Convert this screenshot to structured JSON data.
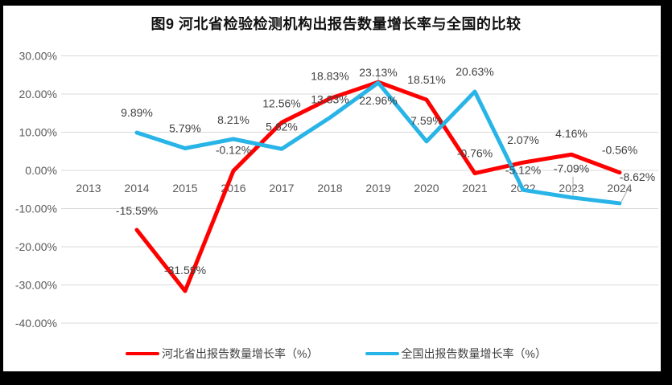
{
  "chart_data": {
    "type": "line",
    "title": "图9 河北省检验检测机构出报告数量增长率与全国的比较",
    "categories": [
      "2013",
      "2014",
      "2015",
      "2016",
      "2017",
      "2018",
      "2019",
      "2020",
      "2021",
      "2022",
      "2023",
      "2024"
    ],
    "series": [
      {
        "name": "河北省出报告数量增长率（%）",
        "color": "#FF0000",
        "values": [
          null,
          -15.59,
          -31.59,
          -0.12,
          12.56,
          18.83,
          23.13,
          18.51,
          -0.76,
          2.07,
          4.16,
          -0.56
        ],
        "labels": [
          "",
          "-15.59%",
          "-31.59%",
          "-0.12%",
          "12.56%",
          "18.83%",
          "23.13%",
          "18.51%",
          "-0.76%",
          "2.07%",
          "4.16%",
          "-0.56%"
        ]
      },
      {
        "name": "全国出报告数量增长率（%）",
        "color": "#29B4E8",
        "values": [
          null,
          9.89,
          5.79,
          8.21,
          5.62,
          13.83,
          22.96,
          7.59,
          20.63,
          -5.12,
          -7.09,
          -8.62
        ],
        "labels": [
          "",
          "9.89%",
          "5.79%",
          "8.21%",
          "5.62%",
          "13.83%",
          "22.96%",
          "7.59%",
          "20.63%",
          "-5.12%",
          "-7.09%",
          "-8.62%"
        ]
      }
    ],
    "y_axis": {
      "min": -40,
      "max": 30,
      "step": 10,
      "ticks": [
        "30.00%",
        "20.00%",
        "10.00%",
        "0.00%",
        "-10.00%",
        "-20.00%",
        "-30.00%",
        "-40.00%"
      ]
    },
    "grid": true,
    "legend_position": "bottom",
    "colors": {
      "gridline": "#D9D9D9",
      "axis_text": "#595959",
      "label_text": "#404040",
      "leader_line": "#A6A6A6",
      "frame": "#000000"
    }
  }
}
